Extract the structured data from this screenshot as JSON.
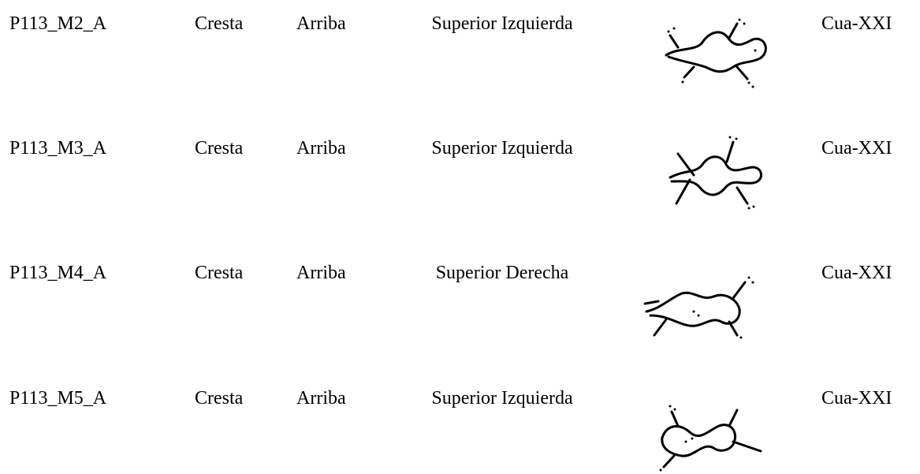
{
  "table": {
    "rows": [
      [
        "P113_M2_A",
        "Cresta",
        "Arriba",
        "Superior Izquierda",
        "Cua-XXI"
      ],
      [
        "P113_M3_A",
        "Cresta",
        "Arriba",
        "Superior Izquierda",
        "Cua-XXI"
      ],
      [
        "P113_M4_A",
        "Cresta",
        "Arriba",
        "Superior Derecha",
        "Cua-XXI"
      ],
      [
        "P113_M5_A",
        "Cresta",
        "Arriba",
        "Superior Izquierda",
        "Cua-XXI"
      ]
    ]
  }
}
